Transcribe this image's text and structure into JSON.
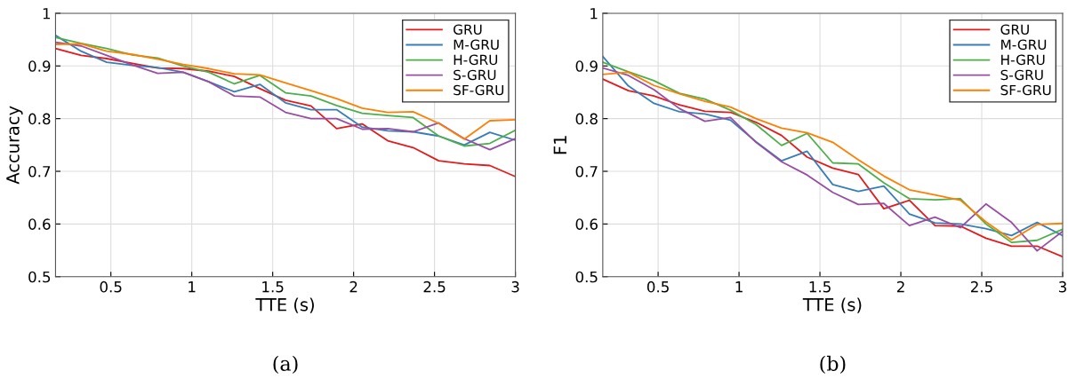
{
  "chart_data": [
    {
      "type": "line",
      "xlabel": "TTE (s)",
      "ylabel": "Accuracy",
      "annotations": [
        "(a)"
      ],
      "x": [
        0.158,
        0.316,
        0.474,
        0.632,
        0.789,
        0.947,
        1.105,
        1.263,
        1.421,
        1.579,
        1.737,
        1.895,
        2.053,
        2.211,
        2.368,
        2.526,
        2.684,
        2.842,
        3.0
      ],
      "series": [
        {
          "name": "GRU",
          "color": "#e41a1c",
          "values": [
            0.933,
            0.92,
            0.914,
            0.905,
            0.896,
            0.895,
            0.89,
            0.88,
            0.857,
            0.835,
            0.824,
            0.781,
            0.79,
            0.758,
            0.745,
            0.72,
            0.714,
            0.711,
            0.69
          ]
        },
        {
          "name": "M-GRU",
          "color": "#377eb8",
          "values": [
            0.958,
            0.928,
            0.907,
            0.901,
            0.897,
            0.888,
            0.87,
            0.851,
            0.865,
            0.83,
            0.817,
            0.817,
            0.784,
            0.777,
            0.775,
            0.767,
            0.75,
            0.774,
            0.759
          ]
        },
        {
          "name": "H-GRU",
          "color": "#4daf4a",
          "values": [
            0.954,
            0.943,
            0.933,
            0.921,
            0.915,
            0.9,
            0.888,
            0.866,
            0.882,
            0.849,
            0.843,
            0.825,
            0.81,
            0.806,
            0.802,
            0.767,
            0.748,
            0.753,
            0.778
          ]
        },
        {
          "name": "S-GRU",
          "color": "#984ea3",
          "values": [
            0.945,
            0.938,
            0.92,
            0.902,
            0.886,
            0.888,
            0.87,
            0.843,
            0.841,
            0.812,
            0.8,
            0.8,
            0.78,
            0.781,
            0.775,
            0.792,
            0.762,
            0.741,
            0.762
          ]
        },
        {
          "name": "SF-GRU",
          "color": "#ff7f00",
          "values": [
            0.941,
            0.942,
            0.928,
            0.922,
            0.913,
            0.903,
            0.895,
            0.885,
            0.883,
            0.868,
            0.853,
            0.838,
            0.82,
            0.812,
            0.813,
            0.791,
            0.761,
            0.796,
            0.798
          ]
        }
      ],
      "xlim": [
        0.158,
        3
      ],
      "ylim": [
        0.5,
        1
      ],
      "xticks": [
        0.5,
        1,
        1.5,
        2,
        2.5,
        3
      ],
      "yticks": [
        0.5,
        0.6,
        0.7,
        0.8,
        0.9,
        1
      ],
      "grid": true,
      "legend": "top right",
      "marker": "none",
      "line_style": "solid"
    },
    {
      "type": "line",
      "xlabel": "TTE (s)",
      "ylabel": "F1",
      "annotations": [
        "(b)"
      ],
      "x": [
        0.158,
        0.316,
        0.474,
        0.632,
        0.789,
        0.947,
        1.105,
        1.263,
        1.421,
        1.579,
        1.737,
        1.895,
        2.053,
        2.211,
        2.368,
        2.526,
        2.684,
        2.842,
        3.0
      ],
      "series": [
        {
          "name": "GRU",
          "color": "#e41a1c",
          "values": [
            0.875,
            0.853,
            0.843,
            0.826,
            0.814,
            0.812,
            0.793,
            0.768,
            0.727,
            0.706,
            0.694,
            0.629,
            0.645,
            0.597,
            0.596,
            0.573,
            0.558,
            0.558,
            0.538
          ]
        },
        {
          "name": "M-GRU",
          "color": "#377eb8",
          "values": [
            0.918,
            0.862,
            0.829,
            0.813,
            0.809,
            0.797,
            0.756,
            0.72,
            0.738,
            0.675,
            0.662,
            0.672,
            0.619,
            0.602,
            0.6,
            0.591,
            0.578,
            0.603,
            0.578
          ]
        },
        {
          "name": "H-GRU",
          "color": "#4daf4a",
          "values": [
            0.907,
            0.889,
            0.872,
            0.848,
            0.837,
            0.816,
            0.789,
            0.749,
            0.772,
            0.716,
            0.714,
            0.678,
            0.648,
            0.646,
            0.648,
            0.6,
            0.565,
            0.569,
            0.59
          ]
        },
        {
          "name": "S-GRU",
          "color": "#984ea3",
          "values": [
            0.896,
            0.882,
            0.855,
            0.819,
            0.795,
            0.802,
            0.755,
            0.718,
            0.693,
            0.66,
            0.637,
            0.639,
            0.597,
            0.613,
            0.593,
            0.638,
            0.603,
            0.549,
            0.586
          ]
        },
        {
          "name": "SF-GRU",
          "color": "#ff7f00",
          "values": [
            0.884,
            0.888,
            0.863,
            0.847,
            0.833,
            0.822,
            0.8,
            0.782,
            0.773,
            0.755,
            0.722,
            0.691,
            0.665,
            0.655,
            0.645,
            0.604,
            0.57,
            0.599,
            0.601
          ]
        }
      ],
      "xlim": [
        0.158,
        3
      ],
      "ylim": [
        0.5,
        1
      ],
      "xticks": [
        0.5,
        1,
        1.5,
        2,
        2.5,
        3
      ],
      "yticks": [
        0.5,
        0.6,
        0.7,
        0.8,
        0.9,
        1
      ],
      "grid": true,
      "legend": "top right",
      "marker": "none",
      "line_style": "solid"
    }
  ]
}
